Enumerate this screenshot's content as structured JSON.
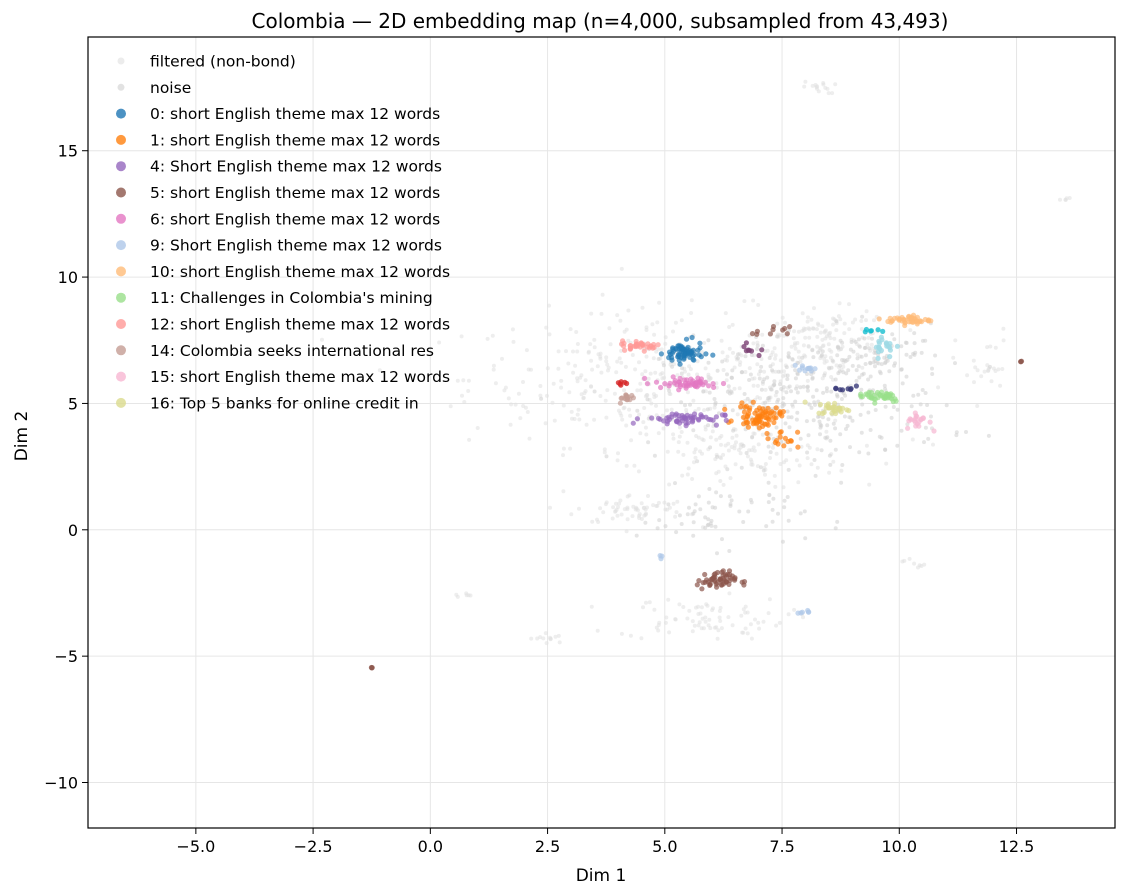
{
  "chart_data": {
    "type": "scatter",
    "title": "Colombia — 2D embedding map (n=4,000, subsampled from 43,493)",
    "xlabel": "Dim 1",
    "ylabel": "Dim 2",
    "xlim": [
      -7.3,
      14.6
    ],
    "ylim": [
      -11.8,
      19.5
    ],
    "x_ticks": [
      -5.0,
      -2.5,
      0.0,
      2.5,
      5.0,
      7.5,
      10.0,
      12.5
    ],
    "x_tick_labels": [
      "−5.0",
      "−2.5",
      "0.0",
      "2.5",
      "5.0",
      "7.5",
      "10.0",
      "12.5"
    ],
    "y_ticks": [
      -10,
      -5,
      0,
      5,
      10,
      15
    ],
    "y_tick_labels": [
      "−10",
      "−5",
      "0",
      "5",
      "10",
      "15"
    ],
    "grid": true,
    "legend_position": "top-left",
    "series": [
      {
        "name": "filtered (non-bond)",
        "color": "#e0e0e0",
        "values_approx": "background cloud",
        "points": [
          {
            "x": 5,
            "y": 6,
            "spread": [
              3.5,
              2.2
            ],
            "n": 400
          },
          {
            "x": 8.5,
            "y": 7.5,
            "spread": [
              1.2,
              1.0
            ],
            "n": 120
          },
          {
            "x": 6.5,
            "y": 3,
            "spread": [
              2.0,
              1.2
            ],
            "n": 120
          },
          {
            "x": 4.3,
            "y": 0.8,
            "spread": [
              1.0,
              0.5
            ],
            "n": 60
          },
          {
            "x": 5.8,
            "y": -3.5,
            "spread": [
              1.5,
              0.7
            ],
            "n": 80
          },
          {
            "x": 8.3,
            "y": 17.5,
            "spread": [
              0.3,
              0.2
            ],
            "n": 15
          },
          {
            "x": 13.5,
            "y": 13.1,
            "spread": [
              0.1,
              0.05
            ],
            "n": 5
          },
          {
            "x": 2.5,
            "y": -4.3,
            "spread": [
              0.3,
              0.2
            ],
            "n": 12
          },
          {
            "x": 0.7,
            "y": -2.6,
            "spread": [
              0.15,
              0.1
            ],
            "n": 6
          },
          {
            "x": 10.3,
            "y": -1.3,
            "spread": [
              0.2,
              0.2
            ],
            "n": 8
          },
          {
            "x": 11.8,
            "y": 6.5,
            "spread": [
              0.5,
              1.2
            ],
            "n": 25
          }
        ]
      },
      {
        "name": "noise",
        "color": "#cfcfcf",
        "points": [
          {
            "x": 8.0,
            "y": 5.0,
            "spread": [
              2.5,
              2.0
            ],
            "n": 300
          },
          {
            "x": 6.2,
            "y": 0.5,
            "spread": [
              1.5,
              1.0
            ],
            "n": 60
          },
          {
            "x": 9.5,
            "y": 6.8,
            "spread": [
              1.2,
              1.0
            ],
            "n": 80
          }
        ]
      },
      {
        "name": "0: short English theme max 12 words",
        "color": "#1f77b4",
        "points": [
          {
            "x": 5.4,
            "y": 7.0,
            "spread": [
              0.35,
              0.35
            ],
            "n": 70
          }
        ]
      },
      {
        "name": "1: short English theme max 12 words",
        "color": "#ff7f0e",
        "points": [
          {
            "x": 7.0,
            "y": 4.5,
            "spread": [
              0.4,
              0.35
            ],
            "n": 70
          },
          {
            "x": 7.5,
            "y": 3.6,
            "spread": [
              0.3,
              0.3
            ],
            "n": 15
          }
        ]
      },
      {
        "name": "4: Short English theme max 12 words",
        "color": "#9467bd",
        "points": [
          {
            "x": 5.4,
            "y": 4.4,
            "spread": [
              0.7,
              0.2
            ],
            "n": 55
          }
        ]
      },
      {
        "name": "5: short English theme max 12 words",
        "color": "#8c564b",
        "points": [
          {
            "x": 6.1,
            "y": -2.0,
            "spread": [
              0.35,
              0.3
            ],
            "n": 55
          },
          {
            "x": 7.3,
            "y": 7.8,
            "spread": [
              0.3,
              0.2
            ],
            "n": 10
          },
          {
            "x": -1.25,
            "y": -5.45,
            "spread": [
              0.02,
              0.02
            ],
            "n": 3
          },
          {
            "x": 12.6,
            "y": 6.65,
            "spread": [
              0.02,
              0.02
            ],
            "n": 3
          }
        ]
      },
      {
        "name": "6: short English theme max 12 words",
        "color": "#e377c2",
        "points": [
          {
            "x": 5.5,
            "y": 5.8,
            "spread": [
              0.6,
              0.2
            ],
            "n": 50
          }
        ]
      },
      {
        "name": "9: Short English theme max 12 words",
        "color": "#aec7e8",
        "points": [
          {
            "x": 8.0,
            "y": 6.4,
            "spread": [
              0.15,
              0.1
            ],
            "n": 12
          },
          {
            "x": 8.0,
            "y": -3.25,
            "spread": [
              0.08,
              0.05
            ],
            "n": 6
          },
          {
            "x": 4.9,
            "y": -1.1,
            "spread": [
              0.05,
              0.1
            ],
            "n": 3
          }
        ]
      },
      {
        "name": "10: short English theme max 12 words",
        "color": "#ffbb78",
        "points": [
          {
            "x": 10.2,
            "y": 8.3,
            "spread": [
              0.4,
              0.15
            ],
            "n": 45
          }
        ]
      },
      {
        "name": "11: Challenges in Colombia's mining",
        "color": "#98df8a",
        "points": [
          {
            "x": 9.6,
            "y": 5.3,
            "spread": [
              0.4,
              0.2
            ],
            "n": 40
          }
        ]
      },
      {
        "name": "12: short English theme max 12 words",
        "color": "#ff9896",
        "points": [
          {
            "x": 4.5,
            "y": 7.3,
            "spread": [
              0.35,
              0.15
            ],
            "n": 35
          }
        ]
      },
      {
        "name": "14: Colombia seeks international res",
        "color": "#c49c94",
        "points": [
          {
            "x": 4.2,
            "y": 5.2,
            "spread": [
              0.15,
              0.15
            ],
            "n": 15
          }
        ]
      },
      {
        "name": "15: short English theme max 12 words",
        "color": "#f7b6d2",
        "points": [
          {
            "x": 10.4,
            "y": 4.3,
            "spread": [
              0.2,
              0.3
            ],
            "n": 20
          }
        ]
      },
      {
        "name": "16: Top 5 banks for online credit in",
        "color": "#dbdb8d",
        "points": [
          {
            "x": 8.6,
            "y": 4.8,
            "spread": [
              0.3,
              0.2
            ],
            "n": 30
          }
        ]
      }
    ],
    "extra_clusters": [
      {
        "color": "#d62728",
        "x": 4.1,
        "y": 5.8,
        "spread": [
          0.1,
          0.08
        ],
        "n": 6
      },
      {
        "color": "#9edae5",
        "x": 9.7,
        "y": 7.3,
        "spread": [
          0.25,
          0.4
        ],
        "n": 20
      },
      {
        "color": "#17becf",
        "x": 9.4,
        "y": 7.9,
        "spread": [
          0.15,
          0.1
        ],
        "n": 6
      },
      {
        "color": "#393b79",
        "x": 8.8,
        "y": 5.6,
        "spread": [
          0.2,
          0.15
        ],
        "n": 8
      },
      {
        "color": "#7b4173",
        "x": 6.8,
        "y": 7.1,
        "spread": [
          0.2,
          0.2
        ],
        "n": 8
      }
    ]
  }
}
